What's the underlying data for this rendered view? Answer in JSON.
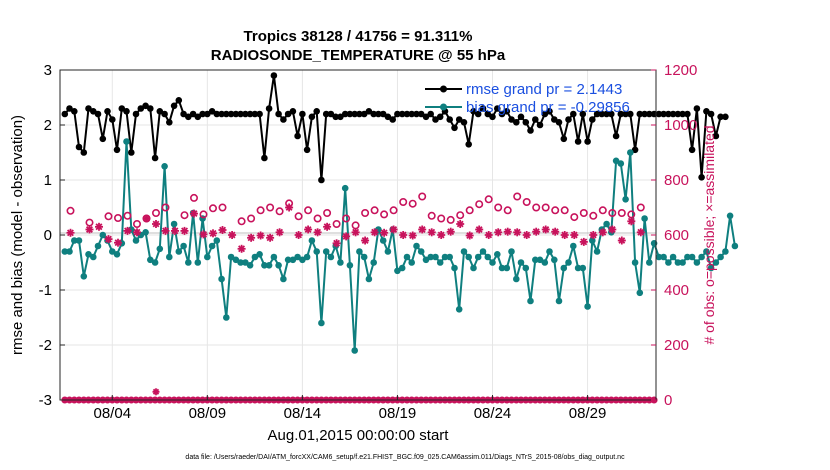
{
  "chart_data": {
    "type": "line",
    "title": "Tropics 38128 / 41756 = 91.311%",
    "subtitle": "RADIOSONDE_TEMPERATURE @ 55 hPa",
    "xlabel": "Aug.01,2015 00:00:00 start",
    "ylabel": "rmse and bias (model - observation)",
    "y2label": "# of obs: o=possible; ×=assimilated",
    "footnote": "data file: /Users/raeder/DAI/ATM_forcXX/CAM6_setup/f.e21.FHIST_BGC.f09_025.CAM6assim.011/Diags_NTrS_2015-08/obs_diag_output.nc",
    "xlim": [
      0.75,
      32.1
    ],
    "ylim": [
      -3,
      3
    ],
    "y2lim": [
      0,
      1200
    ],
    "x_ticks": [
      3.5,
      8.5,
      13.5,
      18.5,
      23.5,
      28.5
    ],
    "x_tick_labels": [
      "08/04",
      "08/09",
      "08/14",
      "08/19",
      "08/24",
      "08/29"
    ],
    "y_ticks": [
      "-3",
      "-2",
      "-1",
      "0",
      "1",
      "2",
      "3"
    ],
    "y2_ticks": [
      "0",
      "200",
      "400",
      "600",
      "800",
      "1000",
      "1200"
    ],
    "x_start": 1.0,
    "x_step": 0.25,
    "series": [
      {
        "name": "rmse grand pr = 2.1443",
        "color": "#000000",
        "marker": "*",
        "values": [
          2.2,
          2.3,
          2.25,
          1.6,
          1.5,
          2.3,
          2.25,
          2.2,
          1.75,
          2.25,
          2.1,
          1.55,
          2.3,
          2.25,
          1.5,
          2.2,
          2.3,
          2.35,
          2.3,
          1.4,
          2.25,
          2.2,
          2.05,
          2.35,
          2.45,
          2.2,
          2.15,
          2.2,
          2.15,
          2.2,
          2.2,
          2.25,
          2.2,
          2.2,
          2.2,
          2.2,
          2.2,
          2.2,
          2.2,
          2.2,
          2.2,
          2.2,
          1.4,
          2.3,
          2.9,
          2.2,
          2.1,
          2.2,
          2.25,
          1.8,
          2.2,
          1.55,
          2.15,
          2.25,
          1.0,
          2.2,
          2.2,
          2.15,
          2.15,
          2.2,
          2.2,
          2.2,
          2.2,
          2.2,
          2.25,
          2.2,
          2.2,
          2.2,
          2.15,
          2.1,
          2.2,
          2.2,
          2.2,
          2.2,
          2.2,
          2.2,
          2.15,
          2.2,
          2.1,
          2.15,
          2.25,
          2.1,
          1.95,
          2.1,
          2.05,
          1.65,
          2.25,
          2.2,
          2.3,
          2.2,
          2.15,
          2.3,
          2.2,
          2.25,
          2.1,
          2.05,
          2.15,
          2.05,
          1.9,
          2.1,
          2.0,
          2.2,
          2.25,
          2.1,
          2.05,
          1.75,
          2.1,
          2.2,
          1.7,
          2.2,
          1.7,
          2.1,
          2.2,
          2.2,
          2.2,
          2.2,
          1.8,
          2.2,
          2.2,
          2.2,
          1.55,
          2.2,
          2.2,
          2.2,
          2.2,
          2.2,
          2.2,
          2.2,
          2.2,
          2.2,
          2.2,
          2.2,
          1.55,
          2.3,
          1.05,
          2.25,
          2.2,
          1.8,
          2.15,
          2.15
        ]
      },
      {
        "name": "bias grand pr = -0.29856",
        "color": "#0f7f7f",
        "marker": "*",
        "values": [
          -0.3,
          -0.3,
          -0.1,
          -0.1,
          -0.75,
          -0.35,
          -0.4,
          -0.2,
          0.0,
          -0.1,
          -0.3,
          -0.35,
          -0.15,
          1.7,
          0.1,
          -0.1,
          0.0,
          0.05,
          -0.45,
          -0.5,
          -0.25,
          1.25,
          -0.4,
          0.2,
          -0.3,
          -0.2,
          -0.5,
          0.4,
          -0.5,
          0.3,
          -0.4,
          -0.2,
          -0.1,
          -0.8,
          -1.5,
          -0.4,
          -0.45,
          -0.5,
          -0.5,
          -0.55,
          -0.4,
          -0.35,
          -0.55,
          -0.55,
          -0.4,
          -0.55,
          -0.8,
          -0.45,
          -0.45,
          -0.4,
          -0.45,
          -0.4,
          -0.1,
          -0.3,
          -1.6,
          -0.3,
          -0.4,
          -0.2,
          -0.5,
          0.85,
          -0.55,
          -2.1,
          -0.3,
          -0.4,
          -0.8,
          -0.5,
          0.1,
          -0.1,
          -0.3,
          0.1,
          -0.65,
          -0.6,
          -0.4,
          -0.5,
          -0.2,
          -0.3,
          -0.45,
          -0.4,
          -0.4,
          -0.5,
          -0.4,
          -0.4,
          -0.6,
          -1.35,
          -0.3,
          -0.4,
          -0.6,
          -0.4,
          -0.3,
          -0.4,
          -0.5,
          -0.35,
          -0.6,
          -0.6,
          -0.3,
          -0.8,
          -0.5,
          -0.6,
          -1.2,
          -0.45,
          -0.45,
          -0.5,
          -0.3,
          -0.45,
          -1.2,
          -0.6,
          -0.5,
          -0.2,
          -0.6,
          -0.6,
          -1.3,
          -0.1,
          -0.3,
          0.1,
          0.2,
          0.05,
          1.35,
          1.3,
          0.65,
          1.5,
          -0.5,
          -1.05,
          0.3,
          -0.5,
          -0.15,
          -0.4,
          -0.4,
          -0.5,
          -0.4,
          -0.5,
          -0.5,
          -0.4,
          -0.4,
          -0.5,
          -0.4,
          -0.3,
          -0.6,
          -0.5,
          -0.4,
          -0.3,
          0.35,
          -0.2
        ]
      }
    ],
    "obs_possible": {
      "name": "# of obs possible",
      "color": "#c8135c",
      "marker": "o",
      "x": [
        1.3,
        2.3,
        3.3,
        3.8,
        4.3,
        4.8,
        5.3,
        5.8,
        6.3,
        7.3,
        7.8,
        8.3,
        8.8,
        9.3,
        10.3,
        10.8,
        11.3,
        11.8,
        12.3,
        12.8,
        13.3,
        13.8,
        14.3,
        14.8,
        15.3,
        15.8,
        16.3,
        16.8,
        17.3,
        17.8,
        18.3,
        18.8,
        19.3,
        19.8,
        20.3,
        20.8,
        21.3,
        21.8,
        22.3,
        22.8,
        23.3,
        23.8,
        24.3,
        24.8,
        25.3,
        25.8,
        26.3,
        26.8,
        27.3,
        27.8,
        28.3,
        28.8,
        29.3,
        29.8,
        30.3,
        30.8,
        31.3
      ],
      "y": [
        688,
        645,
        668,
        662,
        670,
        640,
        660,
        680,
        700,
        672,
        735,
        675,
        697,
        700,
        650,
        660,
        690,
        700,
        686,
        715,
        668,
        690,
        660,
        680,
        640,
        660,
        635,
        680,
        690,
        675,
        690,
        720,
        714,
        740,
        670,
        660,
        655,
        672,
        690,
        712,
        730,
        700,
        690,
        740,
        720,
        700,
        700,
        690,
        690,
        665,
        680,
        670,
        690,
        680,
        680,
        675,
        700
      ]
    },
    "obs_assimilated": {
      "name": "# of obs assimilated",
      "color": "#c8135c",
      "marker": "*",
      "x": [
        1.3,
        2.3,
        2.8,
        3.3,
        3.8,
        4.3,
        4.8,
        5.3,
        5.8,
        6.3,
        6.8,
        7.3,
        7.8,
        8.3,
        8.8,
        9.3,
        9.8,
        10.3,
        10.8,
        11.3,
        11.8,
        12.3,
        12.8,
        13.3,
        13.8,
        14.3,
        14.8,
        15.3,
        15.8,
        16.3,
        16.8,
        17.3,
        17.8,
        18.3,
        18.8,
        19.3,
        19.8,
        20.3,
        20.8,
        21.3,
        21.8,
        22.3,
        22.8,
        23.3,
        23.8,
        24.3,
        24.8,
        25.3,
        25.8,
        26.3,
        26.8,
        27.3,
        27.8,
        28.3,
        28.8,
        29.3,
        29.8,
        30.3,
        30.8,
        31.3
      ],
      "y": [
        608,
        620,
        630,
        585,
        572,
        615,
        610,
        660,
        640,
        615,
        615,
        615,
        678,
        602,
        606,
        618,
        600,
        550,
        590,
        598,
        590,
        610,
        700,
        600,
        620,
        610,
        630,
        570,
        595,
        610,
        580,
        610,
        608,
        620,
        600,
        598,
        620,
        610,
        600,
        612,
        640,
        598,
        620,
        600,
        610,
        612,
        610,
        600,
        612,
        620,
        612,
        600,
        600,
        575,
        600,
        610,
        620,
        580,
        650,
        610
      ]
    },
    "baseline_possible": {
      "value": 0,
      "marker": "o",
      "color": "#c8135c"
    },
    "baseline_assimilated": {
      "x": 5.8,
      "value": 30
    }
  }
}
